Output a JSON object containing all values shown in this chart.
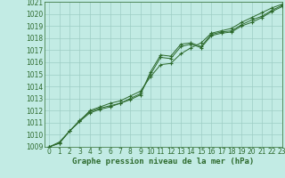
{
  "x": [
    0,
    1,
    2,
    3,
    4,
    5,
    6,
    7,
    8,
    9,
    10,
    11,
    12,
    13,
    14,
    15,
    16,
    17,
    18,
    19,
    20,
    21,
    22,
    23
  ],
  "line1": [
    1009.0,
    1009.3,
    1010.3,
    1011.1,
    1011.8,
    1012.1,
    1012.3,
    1012.6,
    1012.9,
    1013.3,
    1015.2,
    1016.6,
    1016.5,
    1017.5,
    1017.6,
    1017.3,
    1018.3,
    1018.5,
    1018.6,
    1019.1,
    1019.5,
    1019.8,
    1020.3,
    1020.7
  ],
  "line2": [
    1009.0,
    1009.3,
    1010.3,
    1011.2,
    1011.9,
    1012.2,
    1012.4,
    1012.6,
    1013.0,
    1013.4,
    1015.0,
    1016.4,
    1016.3,
    1017.3,
    1017.5,
    1017.2,
    1018.2,
    1018.4,
    1018.5,
    1019.0,
    1019.3,
    1019.7,
    1020.2,
    1020.6
  ],
  "line3": [
    1009.0,
    1009.4,
    1010.3,
    1011.1,
    1012.0,
    1012.3,
    1012.6,
    1012.8,
    1013.2,
    1013.6,
    1014.8,
    1015.8,
    1015.9,
    1016.7,
    1017.2,
    1017.6,
    1018.4,
    1018.6,
    1018.8,
    1019.3,
    1019.7,
    1020.1,
    1020.5,
    1020.8
  ],
  "line_color": "#2d6a2d",
  "bg_color": "#c2ebe4",
  "grid_color": "#9ecdc5",
  "text_color": "#2d6a2d",
  "xlabel": "Graphe pression niveau de la mer (hPa)",
  "ylim": [
    1009,
    1021
  ],
  "xlim": [
    -0.5,
    23
  ],
  "yticks": [
    1009,
    1010,
    1011,
    1012,
    1013,
    1014,
    1015,
    1016,
    1017,
    1018,
    1019,
    1020,
    1021
  ],
  "xticks": [
    0,
    1,
    2,
    3,
    4,
    5,
    6,
    7,
    8,
    9,
    10,
    11,
    12,
    13,
    14,
    15,
    16,
    17,
    18,
    19,
    20,
    21,
    22,
    23
  ],
  "marker": "+",
  "markersize": 3,
  "linewidth": 0.7,
  "tick_fontsize": 5.5,
  "xlabel_fontsize": 6.5
}
